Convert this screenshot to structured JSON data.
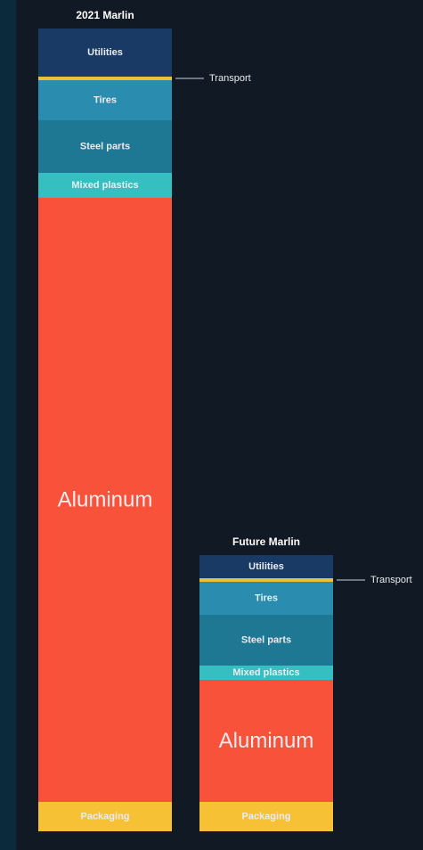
{
  "chart_data": {
    "type": "bar",
    "stacked": true,
    "categories": [
      "2021 Marlin",
      "Future Marlin"
    ],
    "segment_order": [
      "Packaging",
      "Aluminum",
      "Mixed plastics",
      "Steel parts",
      "Tires",
      "Transport",
      "Utilities"
    ],
    "series": [
      {
        "name": "Packaging",
        "label": "Packaging",
        "color": "#f7c136",
        "values": [
          33,
          33
        ]
      },
      {
        "name": "Aluminum",
        "label": "Aluminum",
        "color": "#f9523a",
        "values": [
          678,
          137
        ]
      },
      {
        "name": "Mixed plastics",
        "label": "Mixed plastics",
        "color": "#36bfc1",
        "values": [
          28,
          16
        ]
      },
      {
        "name": "Steel parts",
        "label": "Steel parts",
        "color": "#1e7793",
        "values": [
          59,
          57
        ]
      },
      {
        "name": "Tires",
        "label": "Tires",
        "color": "#2a8daf",
        "values": [
          45,
          37
        ]
      },
      {
        "name": "Transport",
        "label": "Transport",
        "color": "#e9c23a",
        "values": [
          4,
          4
        ]
      },
      {
        "name": "Utilities",
        "label": "Utilities",
        "color": "#1a3a66",
        "values": [
          54,
          26
        ]
      }
    ],
    "callouts": [
      {
        "text": "Transport",
        "series": "Transport",
        "category": "2021 Marlin"
      },
      {
        "text": "Transport",
        "series": "Transport",
        "category": "Future Marlin"
      }
    ],
    "title": "",
    "xlabel": "",
    "ylabel": "",
    "axes_visible": false,
    "grid": false,
    "legend": "none"
  },
  "colors": {
    "background": "#111a24",
    "edge": "#0b2b3d",
    "label_text": "#e8ecef",
    "callout_line": "#c9d2d8"
  }
}
